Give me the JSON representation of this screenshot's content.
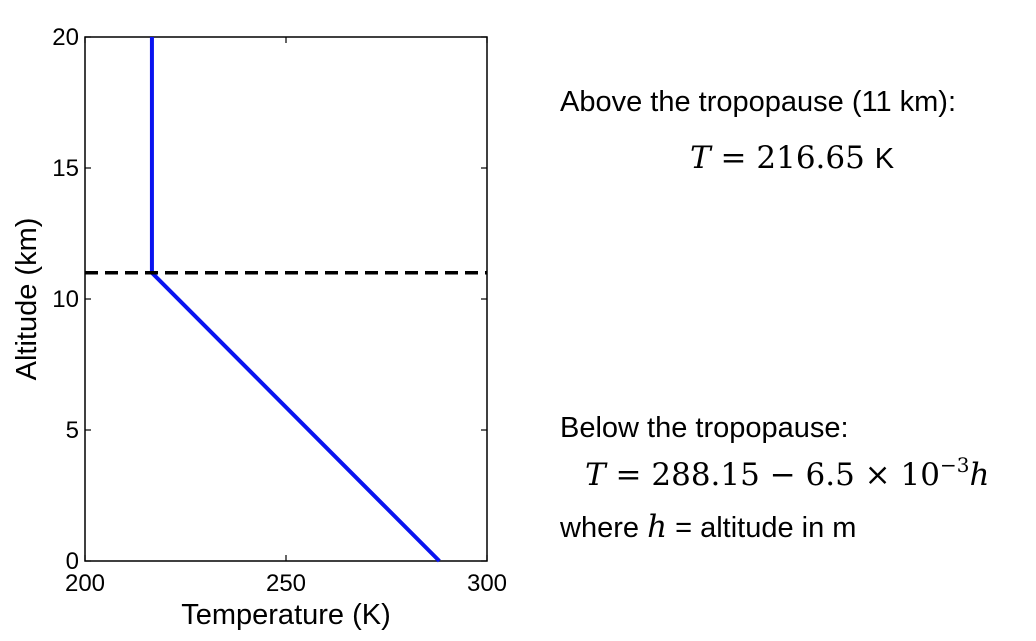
{
  "chart_data": {
    "type": "line",
    "title": "",
    "xlabel": "Temperature (K)",
    "ylabel": "Altitude (km)",
    "xlim": [
      200,
      300
    ],
    "ylim": [
      0,
      20
    ],
    "x_ticks": [
      "200",
      "250",
      "300"
    ],
    "y_ticks": [
      "0",
      "5",
      "10",
      "15",
      "20"
    ],
    "grid": false,
    "series": [
      {
        "color": "#0a14f0",
        "style": "solid",
        "x": [
          288.15,
          216.65,
          216.65
        ],
        "y": [
          0,
          11,
          20
        ]
      },
      {
        "color": "#000000",
        "style": "dashed",
        "x": [
          200,
          300
        ],
        "y": [
          11,
          11
        ]
      }
    ]
  },
  "annotations": {
    "above_title": "Above the tropopause (11 km):",
    "above_eq_var": "T",
    "above_eq_value": "= 216.65",
    "above_eq_unit": "K",
    "below_title": "Below the tropopause:",
    "below_eq_var": "T",
    "below_eq_expr": "= 288.15 − 6.5 × 10",
    "below_eq_exp": "−3",
    "below_eq_h": "h",
    "where_prefix": "where",
    "where_var": "h",
    "where_suffix": "= altitude in m"
  }
}
